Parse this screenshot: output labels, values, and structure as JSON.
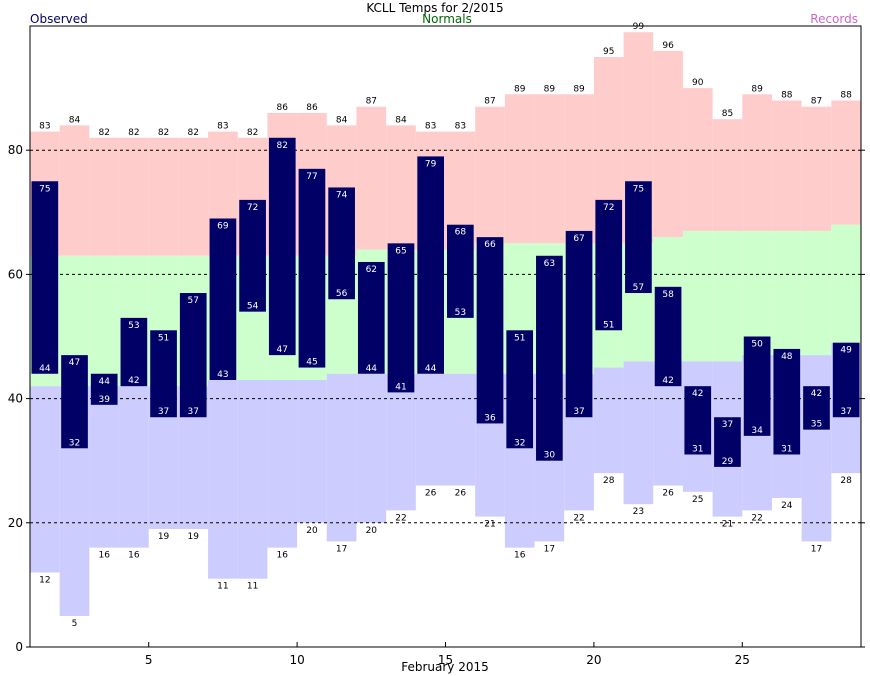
{
  "chart_data": {
    "type": "bar",
    "title": "KCLL Temps for 2/2015",
    "xlabel": "February 2015",
    "ylabel": "",
    "ylim": [
      0,
      100
    ],
    "xlim": [
      1,
      29
    ],
    "x_ticks": [
      5,
      10,
      15,
      20,
      25
    ],
    "y_ticks": [
      0,
      20,
      40,
      60,
      80
    ],
    "grid": "dashed horizontal at 20, 40, 60, 80",
    "legend": [
      {
        "label": "Observed",
        "color": "#000066",
        "placement": "top-left"
      },
      {
        "label": "Normals",
        "color": "#006600",
        "placement": "top-center"
      },
      {
        "label": "Records",
        "color": "#cc66cc",
        "placement": "top-right"
      }
    ],
    "days": [
      1,
      2,
      3,
      4,
      5,
      6,
      7,
      8,
      9,
      10,
      11,
      12,
      13,
      14,
      15,
      16,
      17,
      18,
      19,
      20,
      21,
      22,
      23,
      24,
      25,
      26,
      27,
      28
    ],
    "record_high": [
      83,
      84,
      82,
      82,
      82,
      82,
      83,
      82,
      86,
      86,
      84,
      87,
      84,
      83,
      83,
      87,
      89,
      89,
      89,
      95,
      99,
      96,
      90,
      85,
      89,
      88,
      87,
      88
    ],
    "record_low": [
      12,
      5,
      16,
      16,
      19,
      19,
      11,
      11,
      16,
      20,
      17,
      20,
      22,
      26,
      26,
      21,
      16,
      17,
      22,
      28,
      23,
      26,
      25,
      21,
      22,
      24,
      17,
      28
    ],
    "normal_high": [
      63,
      63,
      63,
      63,
      63,
      63,
      63,
      63,
      63,
      63,
      63,
      64,
      64,
      64,
      64,
      65,
      65,
      65,
      65,
      65,
      65,
      66,
      67,
      67,
      67,
      67,
      67,
      68
    ],
    "normal_low": [
      42,
      42,
      42,
      42,
      42,
      42,
      43,
      43,
      43,
      43,
      44,
      44,
      44,
      44,
      44,
      44,
      44,
      44,
      44,
      45,
      46,
      46,
      46,
      46,
      47,
      47,
      47,
      49
    ],
    "observed_high": [
      75,
      47,
      44,
      53,
      51,
      57,
      69,
      72,
      82,
      77,
      74,
      62,
      65,
      79,
      68,
      66,
      51,
      63,
      67,
      72,
      75,
      58,
      42,
      37,
      50,
      48,
      42,
      49
    ],
    "observed_low": [
      44,
      32,
      39,
      42,
      37,
      37,
      43,
      54,
      47,
      45,
      56,
      44,
      41,
      44,
      53,
      36,
      32,
      30,
      37,
      51,
      57,
      42,
      31,
      29,
      34,
      31,
      35,
      37
    ],
    "colors": {
      "record_band": "#ffcccc",
      "normal_band": "#ccffcc",
      "below_normal_band": "#ccccff",
      "observed_bar": "#000066",
      "observed_label": "#ffffff",
      "record_label": "#000000",
      "grid": "#000000",
      "title_observed": "#000066",
      "title_normals": "#006600",
      "title_records": "#cc66cc"
    }
  }
}
